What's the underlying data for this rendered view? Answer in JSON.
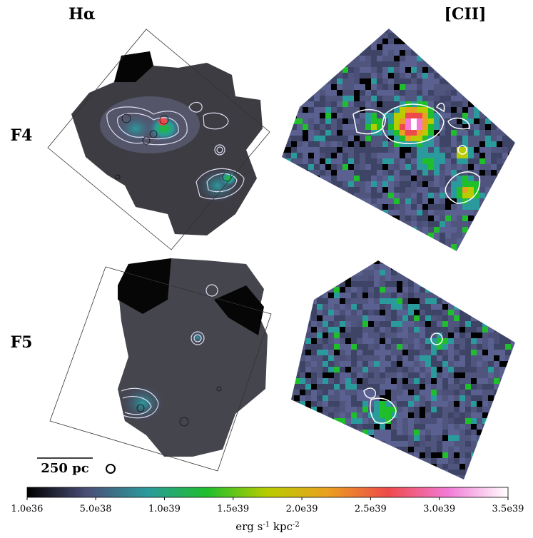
{
  "figure": {
    "columns": [
      "Hα",
      "[CII]"
    ],
    "rows": [
      "F4",
      "F5"
    ],
    "scale_bar": "250 pc",
    "colorbar": {
      "lim": [
        1e+36,
        3.5e+39
      ],
      "ticks": [
        {
          "value": 1e+36,
          "label": "1.0e36"
        },
        {
          "value": 5e+38,
          "label": "5.0e38"
        },
        {
          "value": 1e+39,
          "label": "1.0e39"
        },
        {
          "value": 1.5e+39,
          "label": "1.5e39"
        },
        {
          "value": 2e+39,
          "label": "2.0e39"
        },
        {
          "value": 2.5e+39,
          "label": "2.5e39"
        },
        {
          "value": 3e+39,
          "label": "3.0e39"
        },
        {
          "value": 3.5e+39,
          "label": "3.5e39"
        }
      ],
      "label_parts": [
        "erg s",
        "-1",
        " kpc",
        "-2"
      ],
      "colormap": [
        "#000000",
        "#4b4f78",
        "#2b9a9c",
        "#1fbf2c",
        "#b8cc00",
        "#eaa020",
        "#ee4a4a",
        "#f27ad6",
        "#ffffff"
      ]
    }
  }
}
